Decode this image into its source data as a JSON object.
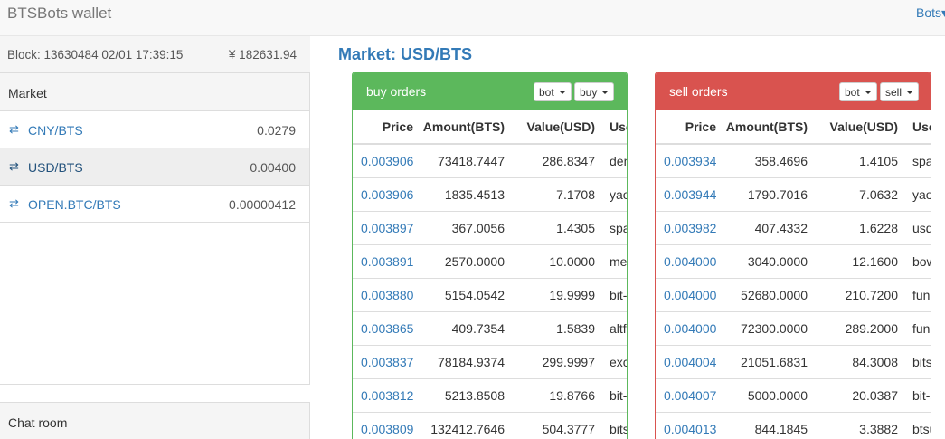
{
  "app": {
    "title": "BTSBots wallet",
    "nav_right": "Bots▾"
  },
  "status": {
    "block": "Block: 13630484 02/01 17:39:15",
    "balance": "¥  182631.94"
  },
  "markets": {
    "header": "Market",
    "items": [
      {
        "pair": "CNY/BTS",
        "price": "0.0279",
        "active": false
      },
      {
        "pair": "USD/BTS",
        "price": "0.00400",
        "active": true
      },
      {
        "pair": "OPEN.BTC/BTS",
        "price": "0.00000412",
        "active": false
      }
    ]
  },
  "chat": {
    "header": "Chat room"
  },
  "main": {
    "title": "Market: USD/BTS"
  },
  "buy_orders": {
    "title": "buy orders",
    "filter1": "bot",
    "filter2": "buy",
    "columns": [
      "Price",
      "Amount(BTS)",
      "Value(USD)",
      "User"
    ],
    "rows": [
      [
        "0.003906",
        "73418.7447",
        "286.8347",
        "dem"
      ],
      [
        "0.003906",
        "1835.4513",
        "7.1708",
        "yao"
      ],
      [
        "0.003897",
        "367.0056",
        "1.4305",
        "span"
      ],
      [
        "0.003891",
        "2570.0000",
        "10.0000",
        "mec"
      ],
      [
        "0.003880",
        "5154.0542",
        "19.9999",
        "bit-s"
      ],
      [
        "0.003865",
        "409.7354",
        "1.5839",
        "altfu"
      ],
      [
        "0.003837",
        "78184.9374",
        "299.9997",
        "exch"
      ],
      [
        "0.003812",
        "5213.8508",
        "19.8766",
        "bit-s"
      ],
      [
        "0.003809",
        "132412.7646",
        "504.3777",
        "bitsh"
      ]
    ]
  },
  "sell_orders": {
    "title": "sell orders",
    "filter1": "bot",
    "filter2": "sell",
    "columns": [
      "Price",
      "Amount(BTS)",
      "Value(USD)",
      "User"
    ],
    "rows": [
      [
        "0.003934",
        "358.4696",
        "1.4105",
        "spa"
      ],
      [
        "0.003944",
        "1790.7016",
        "7.0632",
        "yao"
      ],
      [
        "0.003982",
        "407.4332",
        "1.6228",
        "usd"
      ],
      [
        "0.004000",
        "3040.0000",
        "12.1600",
        "bow"
      ],
      [
        "0.004000",
        "52680.0000",
        "210.7200",
        "funn"
      ],
      [
        "0.004000",
        "72300.0000",
        "289.2000",
        "funn"
      ],
      [
        "0.004004",
        "21051.6831",
        "84.3008",
        "bits"
      ],
      [
        "0.004007",
        "5000.0000",
        "20.0387",
        "bit-s"
      ],
      [
        "0.004013",
        "844.1845",
        "3.3882",
        "btsu"
      ]
    ]
  }
}
